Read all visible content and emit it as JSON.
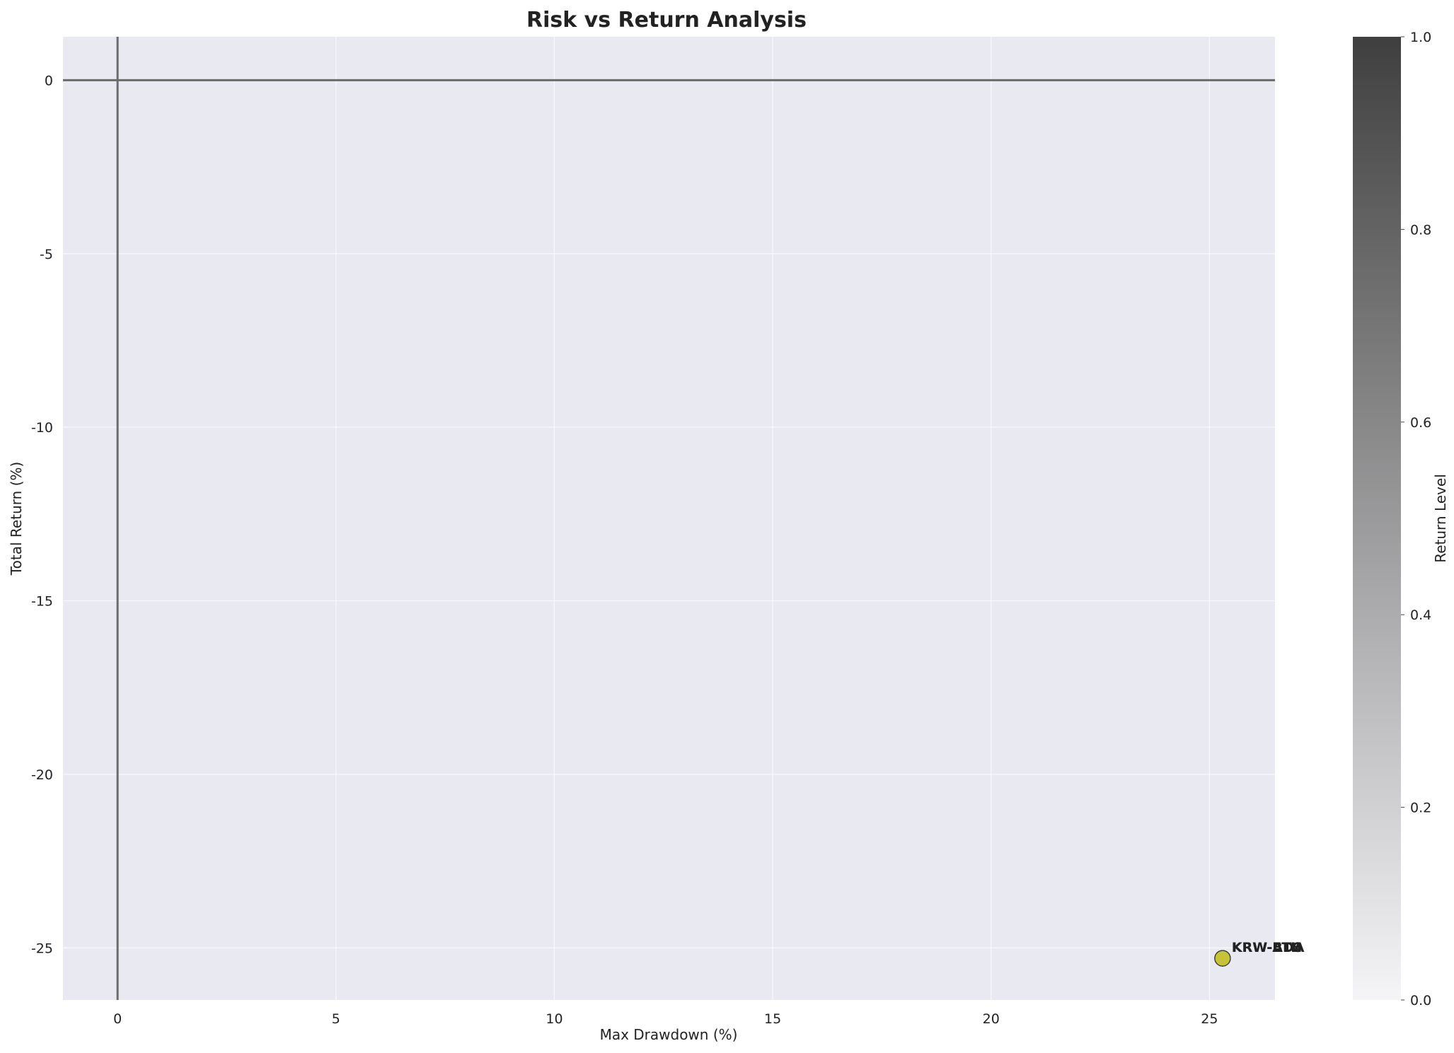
{
  "chart_data": {
    "type": "scatter",
    "title": "Risk vs Return Analysis",
    "xlabel": "Max Drawdown (%)",
    "ylabel": "Total Return (%)",
    "xlim": [
      -1.25,
      26.5
    ],
    "ylim": [
      -26.5,
      1.25
    ],
    "xticks": [
      0,
      5,
      10,
      15,
      20,
      25
    ],
    "yticks": [
      0,
      -5,
      -10,
      -15,
      -20,
      -25
    ],
    "grid": true,
    "reference_lines": {
      "x": 0,
      "y": 0
    },
    "points": [
      {
        "label": "KRW-BTC",
        "x": 25.3,
        "y": -25.3,
        "color_value": 0.85
      },
      {
        "label": "KRW-ETH",
        "x": 25.3,
        "y": -25.3,
        "color_value": 0.85
      },
      {
        "label": "KRW-ADA",
        "x": 25.3,
        "y": -25.3,
        "color_value": 0.85
      }
    ],
    "point_color": "#c6c33a",
    "colorbar": {
      "label": "Return Level",
      "range": [
        0,
        1
      ],
      "ticks": [
        0.0,
        0.2,
        0.4,
        0.6,
        0.8,
        1.0
      ],
      "tick_labels": [
        "0.0",
        "0.2",
        "0.4",
        "0.6",
        "0.8",
        "1.0"
      ],
      "color_low": "#f5f5f8",
      "color_high": "#3f3f3f"
    },
    "colors": {
      "plot_background": "#e9e9f1",
      "grid": "#ffffff",
      "reference_line": "#6b6b6b",
      "text": "#222222"
    }
  }
}
